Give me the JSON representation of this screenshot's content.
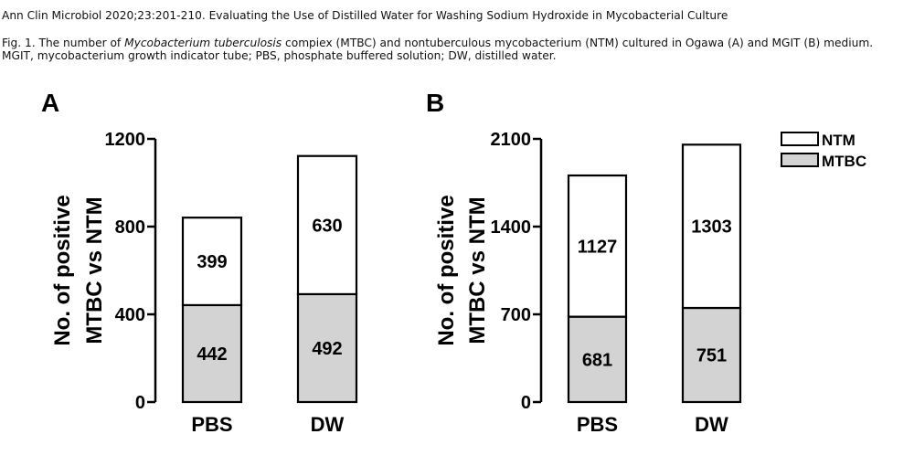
{
  "citation": "Ann Clin Microbiol 2020;23:201-210. Evaluating the Use of Distilled Water for Washing Sodium Hydroxide in Mycobacterial Culture",
  "caption": {
    "prefix": "Fig. 1. The number of ",
    "species": "Mycobacterium tuberculosis",
    "suffix": " compiex (MTBC) and nontuberculous mycobacterium (NTM) cultured in Ogawa (A) and MGIT (B) medium. MGIT, mycobacterium growth indicator tube; PBS, phosphate buffered solution; DW, distilled water."
  },
  "colors": {
    "MTBC": "#d3d3d3",
    "NTM": "#ffffff",
    "stroke": "#000000"
  },
  "legend": {
    "ntm": "NTM",
    "mtbc": "MTBC",
    "placement": "top-right"
  },
  "chart_data": [
    {
      "type": "bar",
      "stacked": true,
      "panel": "A",
      "categories": [
        "PBS",
        "DW"
      ],
      "series": [
        {
          "name": "MTBC",
          "values": [
            442,
            492
          ]
        },
        {
          "name": "NTM",
          "values": [
            399,
            630
          ]
        }
      ],
      "ylabel_line1": "No. of positive",
      "ylabel_line2": "MTBC vs NTM",
      "ylim": [
        0,
        1200
      ],
      "yticks": [
        0,
        400,
        800,
        1200
      ],
      "ytick_labels": [
        "0",
        "400",
        "800",
        "1200"
      ]
    },
    {
      "type": "bar",
      "stacked": true,
      "panel": "B",
      "categories": [
        "PBS",
        "DW"
      ],
      "series": [
        {
          "name": "MTBC",
          "values": [
            681,
            751
          ]
        },
        {
          "name": "NTM",
          "values": [
            1127,
            1303
          ]
        }
      ],
      "ylabel_line1": "No. of positive",
      "ylabel_line2": "MTBC vs NTM",
      "ylim": [
        0,
        2100
      ],
      "yticks": [
        0,
        700,
        1400,
        2100
      ],
      "ytick_labels": [
        "0",
        "700",
        "1400",
        "2100"
      ]
    }
  ]
}
